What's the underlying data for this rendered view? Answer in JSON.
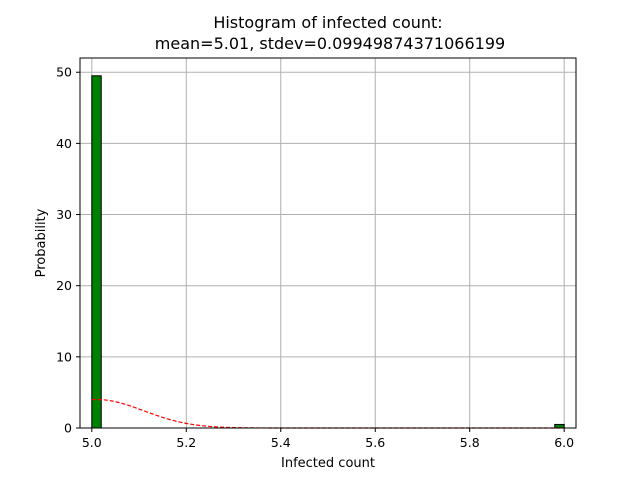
{
  "chart_data": {
    "type": "bar",
    "title_line1": "Histogram of infected count:",
    "title_line2": "mean=5.01, stdev=0.09949874371066199",
    "xlabel": "Infected count",
    "ylabel": "Probability",
    "xlim": [
      4.975,
      6.025
    ],
    "ylim": [
      0,
      52
    ],
    "xticks": [
      5.0,
      5.2,
      5.4,
      5.6,
      5.8,
      6.0
    ],
    "xtick_labels": [
      "5.0",
      "5.2",
      "5.4",
      "5.6",
      "5.8",
      "6.0"
    ],
    "yticks": [
      0,
      10,
      20,
      30,
      40,
      50
    ],
    "ytick_labels": [
      "0",
      "10",
      "20",
      "30",
      "40",
      "50"
    ],
    "grid": true,
    "bins": [
      {
        "x0": 5.0,
        "x1": 5.02,
        "value": 49.5
      },
      {
        "x0": 5.98,
        "x1": 6.0,
        "value": 0.5
      }
    ],
    "bar_color": "#008000",
    "bar_edge_color": "#000000",
    "curve": {
      "style": "dashed",
      "color": "#ff0000",
      "mean": 5.01,
      "stdev": 0.09949874371066199,
      "x_range": [
        5.0,
        6.0
      ]
    }
  }
}
